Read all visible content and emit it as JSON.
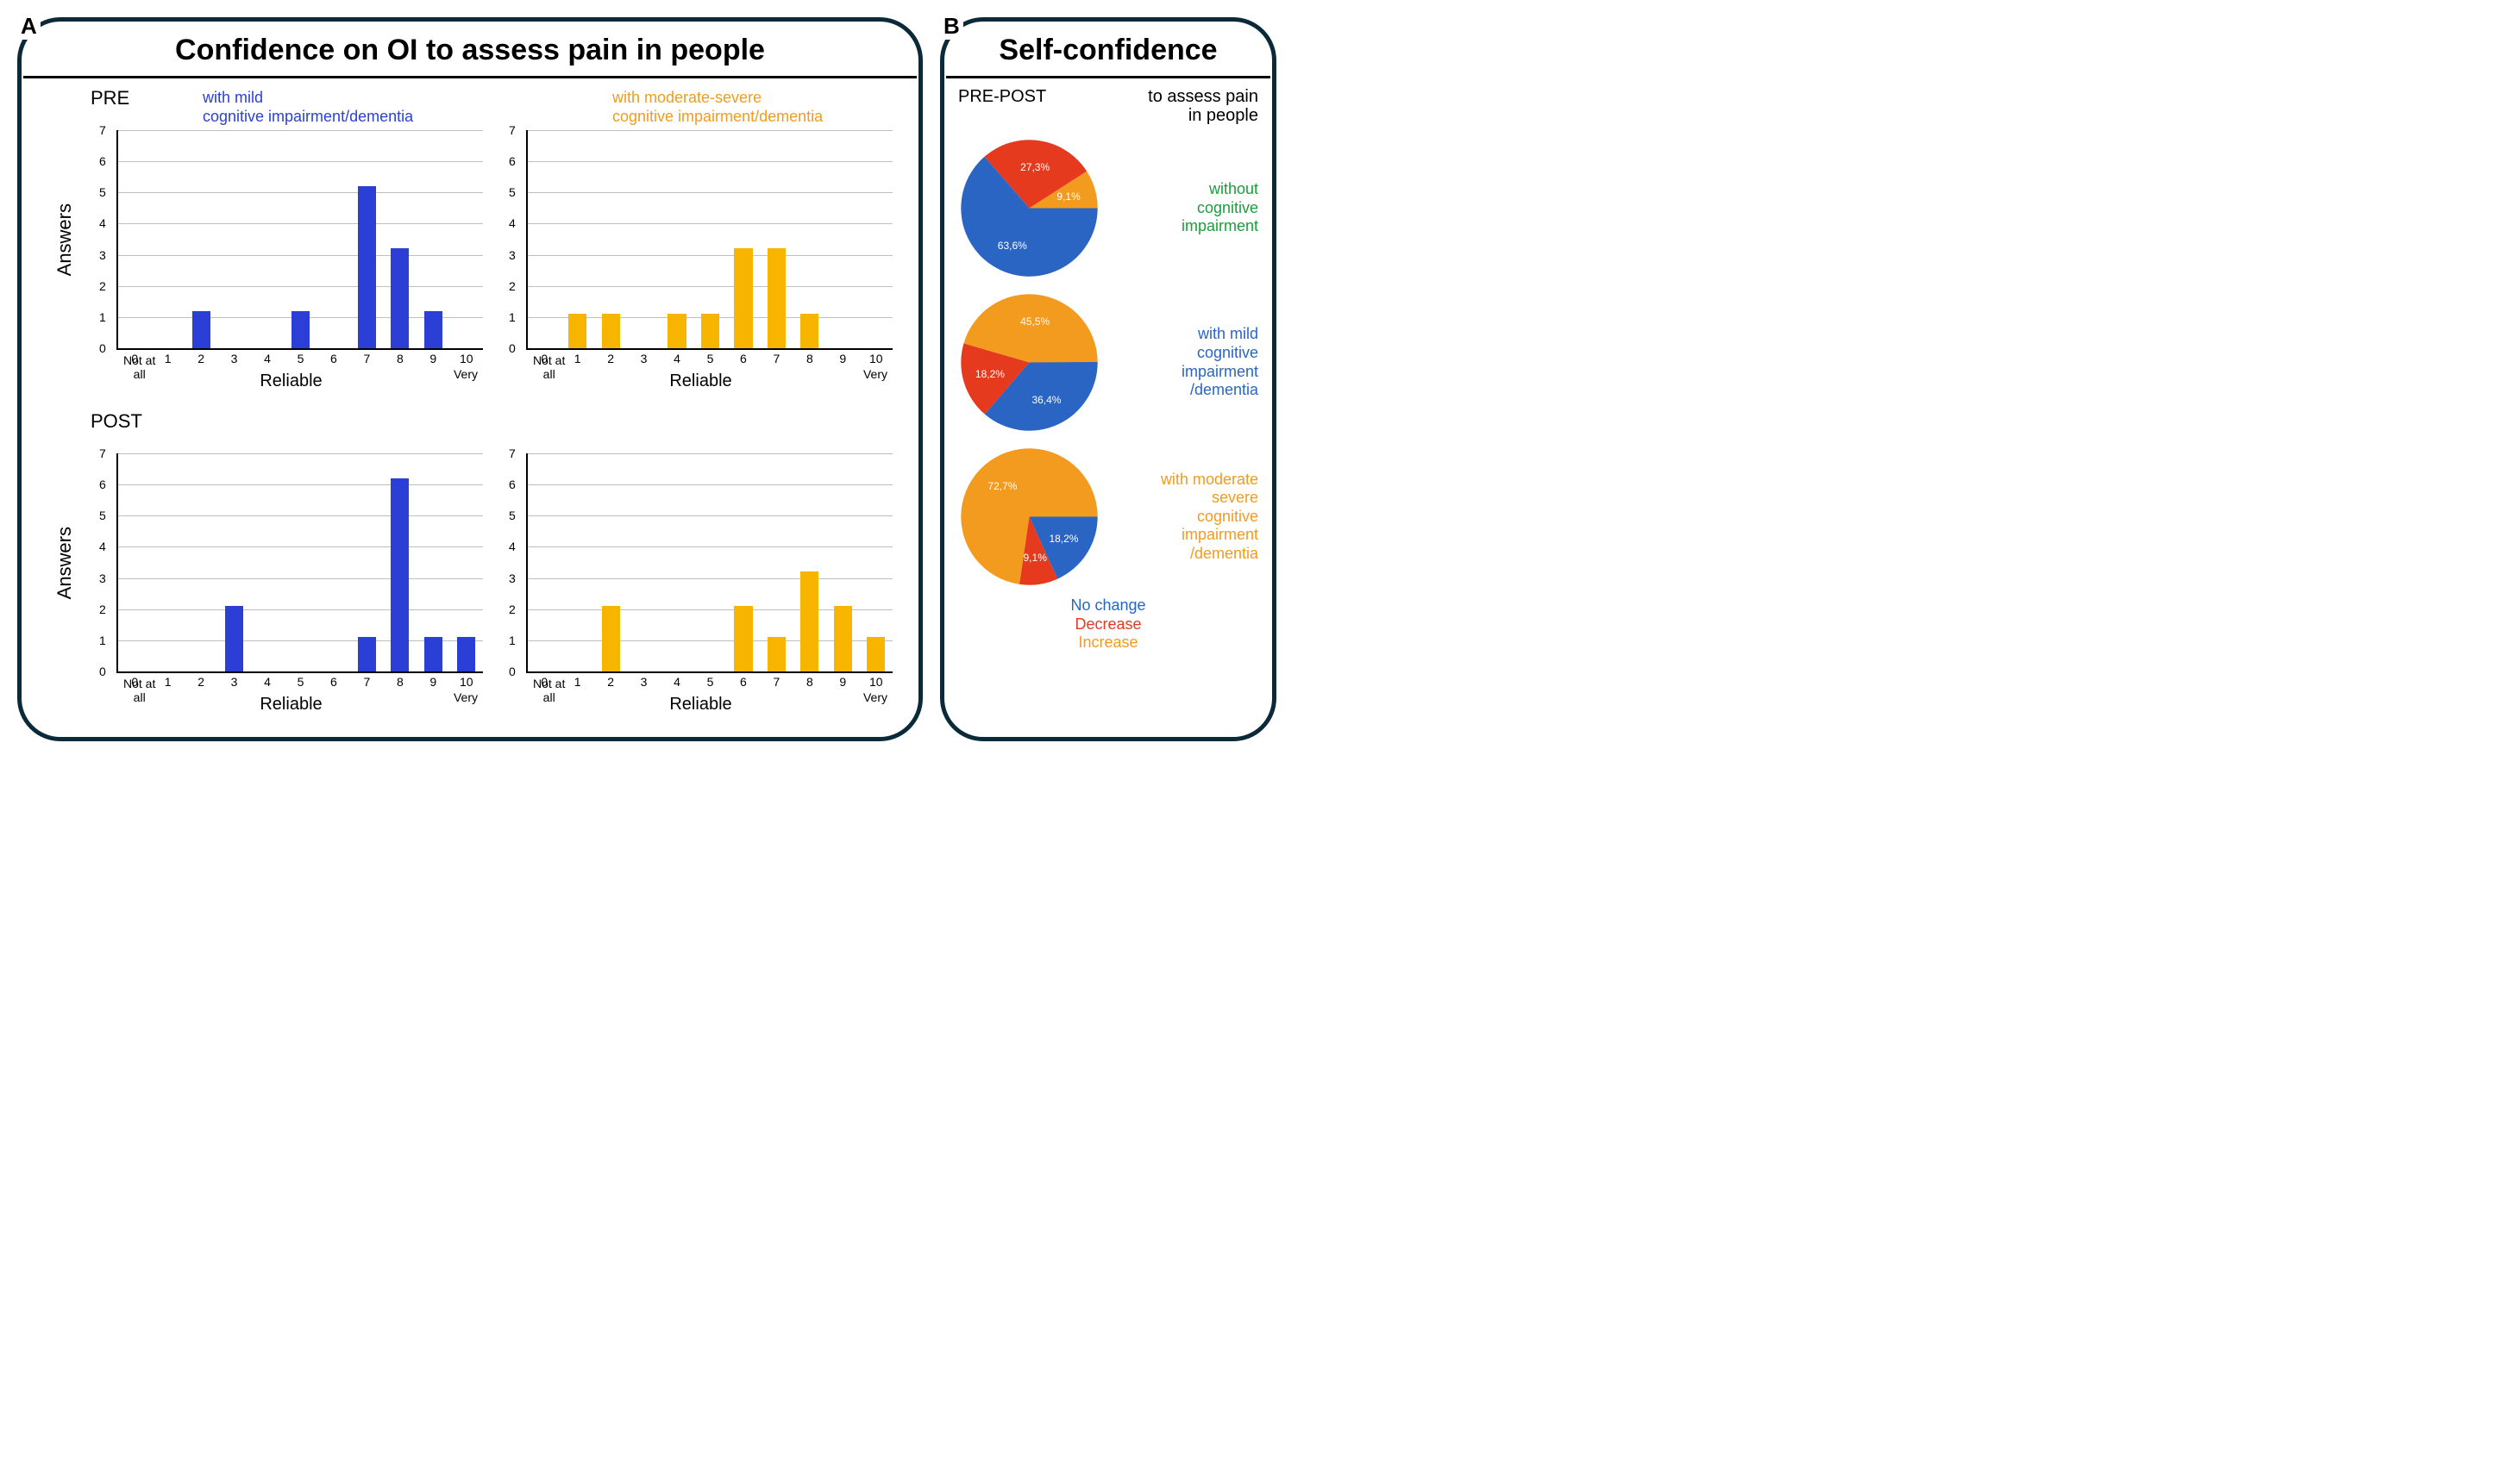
{
  "colors": {
    "blue": "#2b3fd6",
    "orange": "#f7b500",
    "red": "#e63a1f",
    "pie_blue": "#2a65c4",
    "pie_orange": "#f29b1e",
    "pie_red": "#e63a1f",
    "green": "#1a9e3a",
    "border": "#0a2a3a",
    "grid": "#bfbfbf"
  },
  "panelA": {
    "label": "A",
    "title": "Confidence on OI to assess pain in people",
    "ylabel": "Answers",
    "xlabel": "Reliable",
    "end_left": "Not at\nall",
    "end_right": "Very",
    "y": {
      "min": 0,
      "max": 7,
      "step": 1
    },
    "x_categories": [
      "0",
      "1",
      "2",
      "3",
      "4",
      "5",
      "6",
      "7",
      "8",
      "9",
      "10"
    ],
    "rows": [
      {
        "stage": "PRE",
        "charts": [
          {
            "series_label": "with mild\ncognitive impairment/dementia",
            "label_color": "#2b3fd6",
            "bar_color": "#2b3fd6",
            "values": [
              0,
              0,
              1.2,
              0,
              0,
              1.2,
              0,
              5.2,
              3.2,
              1.2,
              0
            ]
          },
          {
            "series_label": "with moderate-severe\ncognitive impairment/dementia",
            "label_color": "#f29b1e",
            "bar_color": "#f7b500",
            "values": [
              0,
              1.1,
              1.1,
              0,
              1.1,
              1.1,
              3.2,
              3.2,
              1.1,
              0,
              0
            ]
          }
        ]
      },
      {
        "stage": "POST",
        "charts": [
          {
            "series_label": "",
            "label_color": "#2b3fd6",
            "bar_color": "#2b3fd6",
            "values": [
              0,
              0,
              0,
              2.1,
              0,
              0,
              0,
              1.1,
              6.2,
              1.1,
              1.1
            ]
          },
          {
            "series_label": "",
            "label_color": "#f29b1e",
            "bar_color": "#f7b500",
            "values": [
              0,
              0,
              2.1,
              0,
              0,
              0,
              2.1,
              1.1,
              3.2,
              2.1,
              1.1
            ]
          }
        ]
      }
    ]
  },
  "panelB": {
    "label": "B",
    "title": "Self-confidence",
    "header_left": "PRE-POST",
    "header_right": "to assess pain\nin people",
    "pies": [
      {
        "slices": [
          {
            "label": "No change",
            "pct": 63.6,
            "color": "#2a65c4",
            "show_pct": "63,6%"
          },
          {
            "label": "Decrease",
            "pct": 27.3,
            "color": "#e63a1f",
            "show_pct": "27,3%"
          },
          {
            "label": "Increase",
            "pct": 9.1,
            "color": "#f29b1e",
            "show_pct": "9,1%"
          }
        ],
        "start_angle": 180,
        "caption": "without\ncognitive\nimpairment",
        "caption_color": "#1a9e3a"
      },
      {
        "slices": [
          {
            "label": "No change",
            "pct": 36.4,
            "color": "#2a65c4",
            "show_pct": "36,4%"
          },
          {
            "label": "Decrease",
            "pct": 18.2,
            "color": "#e63a1f",
            "show_pct": "18,2%"
          },
          {
            "label": "Increase",
            "pct": 45.5,
            "color": "#f29b1e",
            "show_pct": "45,5%"
          }
        ],
        "start_angle": 180,
        "caption": "with mild\ncognitive\nimpairment\n/dementia",
        "caption_color": "#2a65c4"
      },
      {
        "slices": [
          {
            "label": "No change",
            "pct": 18.2,
            "color": "#2a65c4",
            "show_pct": "18,2%"
          },
          {
            "label": "Decrease",
            "pct": 9.1,
            "color": "#e63a1f",
            "show_pct": "9,1%"
          },
          {
            "label": "Increase",
            "pct": 72.7,
            "color": "#f29b1e",
            "show_pct": "72,7%"
          }
        ],
        "start_angle": 180,
        "caption": "with moderate\nsevere\ncognitive\nimpairment\n/dementia",
        "caption_color": "#f29b1e"
      }
    ],
    "legend": [
      {
        "text": "No change",
        "color": "#2a65c4"
      },
      {
        "text": "Decrease",
        "color": "#e63a1f"
      },
      {
        "text": "Increase",
        "color": "#f29b1e"
      }
    ]
  }
}
